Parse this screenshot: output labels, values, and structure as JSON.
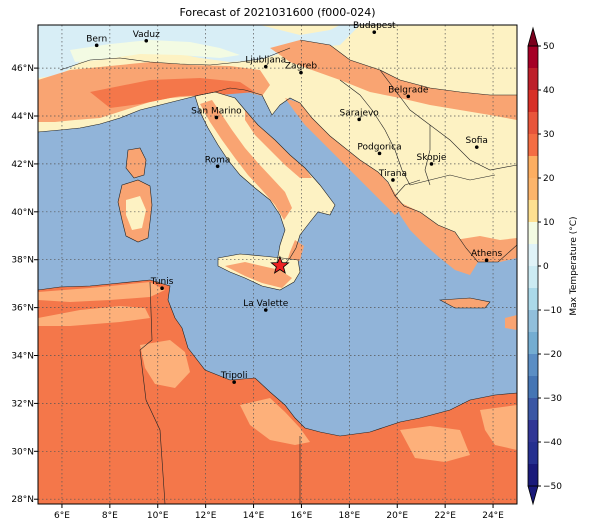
{
  "title": "Forecast of 2021031600 (f000-024)",
  "colorbar": {
    "label": "Max Temperature (°C)",
    "ticks": [
      -50,
      -40,
      -30,
      -20,
      -10,
      0,
      10,
      20,
      30,
      40,
      50
    ],
    "levels": [
      -50,
      -45,
      -40,
      -35,
      -30,
      -25,
      -20,
      -15,
      -10,
      -5,
      0,
      5,
      10,
      15,
      20,
      25,
      30,
      35,
      40,
      45,
      50
    ],
    "colors": [
      "#1a1a7a",
      "#26308f",
      "#313695",
      "#3a56a4",
      "#4575b4",
      "#5b8ec4",
      "#74add1",
      "#91bfdb",
      "#abd9e9",
      "#ccebf3",
      "#e0f3f8",
      "#f3fbe3",
      "#fee090",
      "#fdb56b",
      "#fdae61",
      "#f46d43",
      "#e8553b",
      "#d73027",
      "#bd1f2a",
      "#a50026",
      "#7a001c"
    ]
  },
  "map": {
    "x_ticks": [
      "6°E",
      "8°E",
      "10°E",
      "12°E",
      "14°E",
      "16°E",
      "18°E",
      "20°E",
      "22°E",
      "24°E"
    ],
    "y_ticks": [
      "46°N",
      "44°N",
      "42°N",
      "40°N",
      "38°N",
      "36°N",
      "34°N",
      "32°N",
      "30°N",
      "28°N"
    ],
    "lon_range": [
      5,
      25
    ],
    "lat_range": [
      27.8,
      47.8
    ]
  },
  "cities": [
    {
      "name": "Bern",
      "lon": 7.45,
      "lat": 46.95
    },
    {
      "name": "Vaduz",
      "lon": 9.52,
      "lat": 47.14
    },
    {
      "name": "Budapest",
      "lon": 19.04,
      "lat": 47.5
    },
    {
      "name": "Ljubljana",
      "lon": 14.51,
      "lat": 46.06
    },
    {
      "name": "Zagreb",
      "lon": 15.98,
      "lat": 45.81
    },
    {
      "name": "Belgrade",
      "lon": 20.46,
      "lat": 44.82
    },
    {
      "name": "San Marino",
      "lon": 12.45,
      "lat": 43.94
    },
    {
      "name": "Sarajevo",
      "lon": 18.41,
      "lat": 43.86
    },
    {
      "name": "Sofia",
      "lon": 23.32,
      "lat": 42.7
    },
    {
      "name": "Roma",
      "lon": 12.5,
      "lat": 41.9
    },
    {
      "name": "Podgorica",
      "lon": 19.26,
      "lat": 42.44
    },
    {
      "name": "Skopje",
      "lon": 21.43,
      "lat": 42.0
    },
    {
      "name": "Tirana",
      "lon": 19.82,
      "lat": 41.33
    },
    {
      "name": "Athens",
      "lon": 23.73,
      "lat": 37.98
    },
    {
      "name": "Tunis",
      "lon": 10.18,
      "lat": 36.81
    },
    {
      "name": "La Valette",
      "lon": 14.51,
      "lat": 35.9
    },
    {
      "name": "Tripoli",
      "lon": 13.19,
      "lat": 32.89
    }
  ],
  "marker": {
    "name": "star-marker",
    "lon": 15.1,
    "lat": 37.75,
    "color": "#ee2222"
  }
}
